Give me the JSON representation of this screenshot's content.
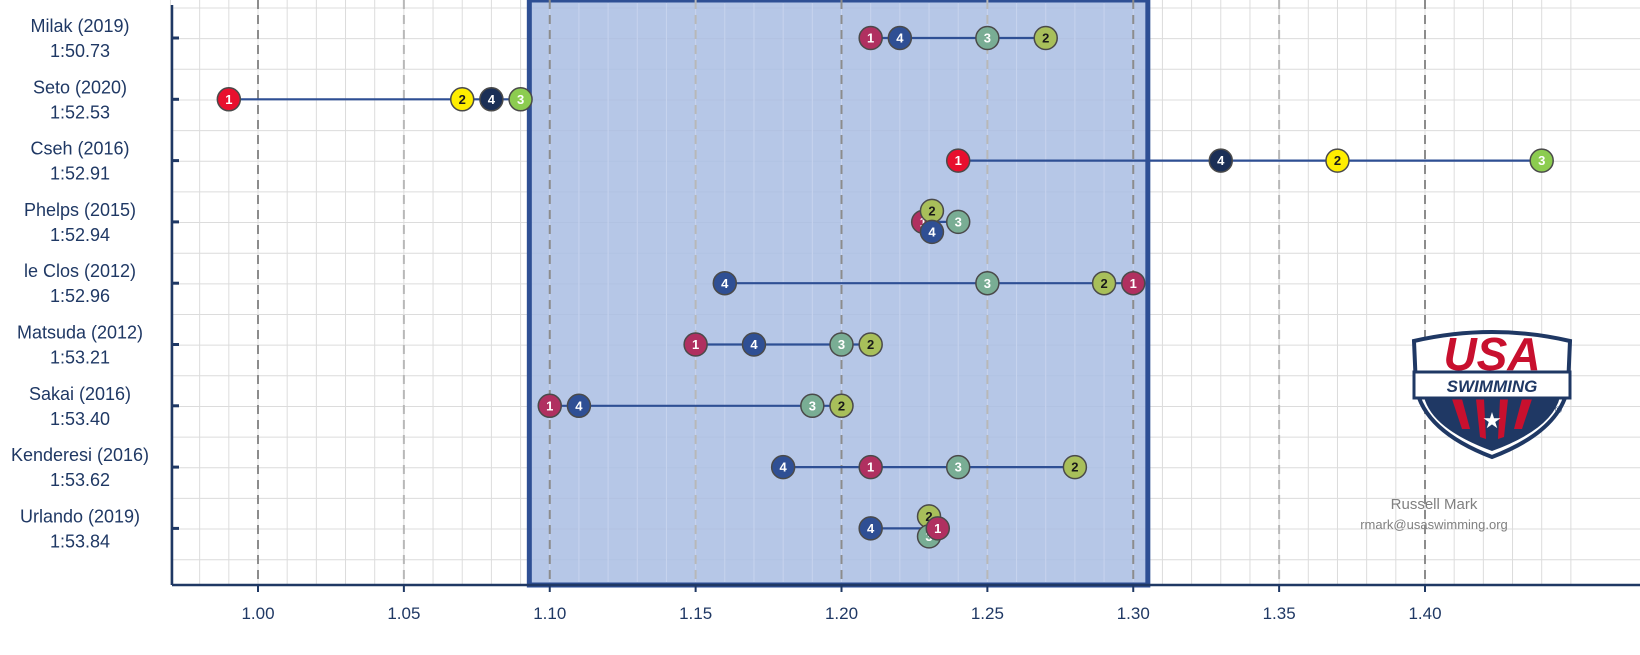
{
  "chart_data": {
    "type": "scatter",
    "xlim": [
      0.97,
      1.45
    ],
    "x_ticks": [
      "1.00",
      "1.05",
      "1.10",
      "1.15",
      "1.20",
      "1.25",
      "1.30",
      "1.35",
      "1.40"
    ],
    "x_tick_values": [
      1.0,
      1.05,
      1.1,
      1.15,
      1.2,
      1.25,
      1.3,
      1.35,
      1.4
    ],
    "highlight_band": [
      1.093,
      1.305
    ],
    "grid": true,
    "marker_labels": [
      "1",
      "2",
      "3",
      "4"
    ],
    "colors": {
      "axis": "#1f3864",
      "band_fill": "#a9bde3",
      "band_border": "#2e4f94",
      "connector": "#2e4f94",
      "m1": "#b03060",
      "m1_bright": "#e8102e",
      "m2": "#a8bf5a",
      "m2_bright": "#ffee00",
      "m3": "#79ad94",
      "m3_bright": "#8ccc50",
      "m4": "#2f4f94",
      "m4_dark": "#1b2f56"
    },
    "swimmers": [
      {
        "name": "Milak (2019)",
        "time": "1:50.73",
        "bright": false,
        "points": [
          {
            "m": "1",
            "x": 1.21
          },
          {
            "m": "4",
            "x": 1.22
          },
          {
            "m": "3",
            "x": 1.25
          },
          {
            "m": "2",
            "x": 1.27
          }
        ]
      },
      {
        "name": "Seto (2020)",
        "time": "1:52.53",
        "bright": true,
        "points": [
          {
            "m": "1",
            "x": 0.99
          },
          {
            "m": "2",
            "x": 1.07
          },
          {
            "m": "4",
            "x": 1.08
          },
          {
            "m": "3",
            "x": 1.09
          }
        ]
      },
      {
        "name": "Cseh (2016)",
        "time": "1:52.91",
        "bright": true,
        "points": [
          {
            "m": "1",
            "x": 1.24
          },
          {
            "m": "4",
            "x": 1.33
          },
          {
            "m": "2",
            "x": 1.37
          },
          {
            "m": "3",
            "x": 1.44
          }
        ]
      },
      {
        "name": "Phelps (2015)",
        "time": "1:52.94",
        "bright": false,
        "points": [
          {
            "m": "1",
            "x": 1.228,
            "dy": 0
          },
          {
            "m": "2",
            "x": 1.231,
            "dy": -11
          },
          {
            "m": "4",
            "x": 1.231,
            "dy": 10
          },
          {
            "m": "3",
            "x": 1.24,
            "dy": 0
          }
        ]
      },
      {
        "name": "le Clos (2012)",
        "time": "1:52.96",
        "bright": false,
        "points": [
          {
            "m": "4",
            "x": 1.16
          },
          {
            "m": "3",
            "x": 1.25
          },
          {
            "m": "2",
            "x": 1.29
          },
          {
            "m": "1",
            "x": 1.3
          }
        ]
      },
      {
        "name": "Matsuda (2012)",
        "time": "1:53.21",
        "bright": false,
        "points": [
          {
            "m": "1",
            "x": 1.15
          },
          {
            "m": "4",
            "x": 1.17
          },
          {
            "m": "3",
            "x": 1.2
          },
          {
            "m": "2",
            "x": 1.21
          }
        ]
      },
      {
        "name": "Sakai (2016)",
        "time": "1:53.40",
        "bright": false,
        "points": [
          {
            "m": "1",
            "x": 1.1
          },
          {
            "m": "4",
            "x": 1.11
          },
          {
            "m": "3",
            "x": 1.19
          },
          {
            "m": "2",
            "x": 1.2
          }
        ]
      },
      {
        "name": "Kenderesi (2016)",
        "time": "1:53.62",
        "bright": false,
        "points": [
          {
            "m": "4",
            "x": 1.18
          },
          {
            "m": "1",
            "x": 1.21
          },
          {
            "m": "3",
            "x": 1.24
          },
          {
            "m": "2",
            "x": 1.28
          }
        ]
      },
      {
        "name": "Urlando (2019)",
        "time": "1:53.84",
        "bright": false,
        "points": [
          {
            "m": "4",
            "x": 1.21
          },
          {
            "m": "2",
            "x": 1.23,
            "dy": -12
          },
          {
            "m": "3",
            "x": 1.23,
            "dy": 8
          },
          {
            "m": "1",
            "x": 1.233,
            "dy": 0
          }
        ]
      }
    ]
  },
  "logo": {
    "name": "usa-swimming-logo",
    "line1": "USA",
    "line2": "SWIMMING",
    "registered": "®"
  },
  "credit": {
    "author": "Russell Mark",
    "email": "rmark@usaswimming.org"
  }
}
